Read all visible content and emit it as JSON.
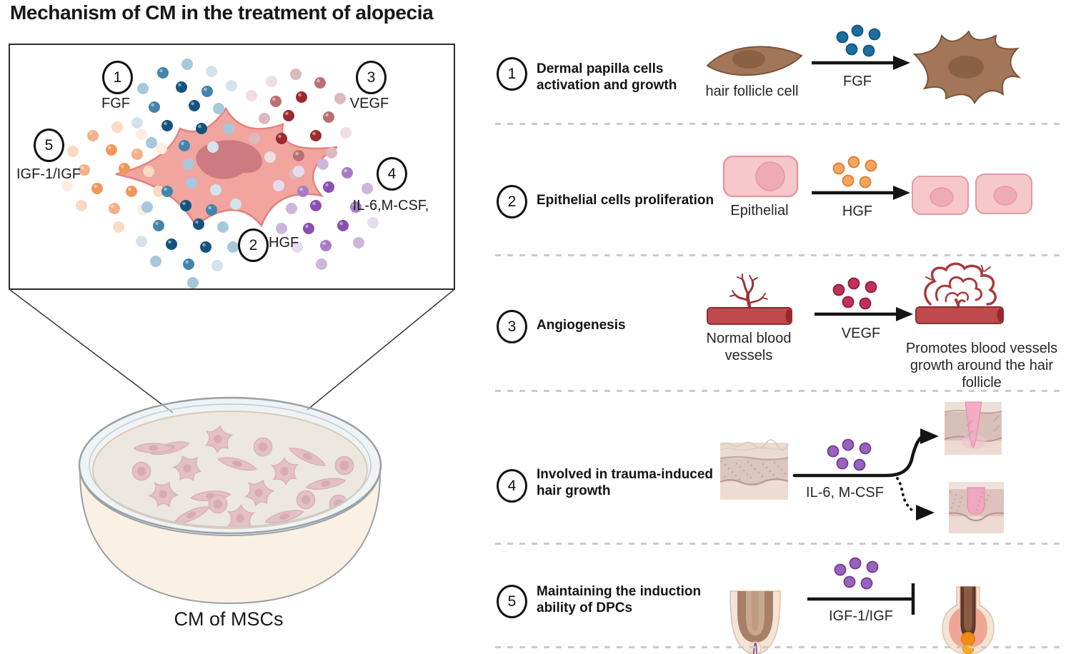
{
  "title": "Mechanism of CM in the treatment of alopecia",
  "magnifier_box": {
    "factors": [
      {
        "num": "1",
        "label": "FGF"
      },
      {
        "num": "2",
        "label": "HGF"
      },
      {
        "num": "3",
        "label": "VEGF"
      },
      {
        "num": "4",
        "label": "IL-6,M-CSF,"
      },
      {
        "num": "5",
        "label": "IGF-1/IGF"
      }
    ]
  },
  "dish": {
    "label": "CM of MSCs"
  },
  "rows": [
    {
      "num": "1",
      "title": "Dermal papilla cells\nactivation and growth",
      "source_label": "hair follicle cell",
      "mediator_label": "FGF",
      "source_icon": "hair-follicle-cell",
      "result_icon": "activated-dermal-papilla-cell"
    },
    {
      "num": "2",
      "title": "Epithelial cells proliferation",
      "source_label": "Epithelial",
      "mediator_label": "HGF",
      "source_icon": "epithelial-cell",
      "result_icon": "two-epithelial-cells"
    },
    {
      "num": "3",
      "title": "Angiogenesis",
      "source_label": "Normal blood\nvessels",
      "mediator_label": "VEGF",
      "result_label": "Promotes blood vessels\ngrowth around the hair\nfollicle",
      "source_icon": "normal-blood-vessel",
      "result_icon": "dense-blood-vessel-network"
    },
    {
      "num": "4",
      "title": "Involved in trauma-induced\nhair growth",
      "mediator_label": "IL-6, M-CSF",
      "source_icon": "skin-section",
      "result_icon": "wounded-skin-sections"
    },
    {
      "num": "5",
      "title": "Maintaining the induction\nability of DPCs",
      "mediator_label": "IGF-1/IGF",
      "source_icon": "hair-follicle",
      "result_icon": "hair-follicle-bulb"
    }
  ],
  "colors": {
    "factor_dot_palettes": {
      "FGF": [
        "#14537f",
        "#4384ab",
        "#a6c8da",
        "#d3e3ec"
      ],
      "HGF": [
        "#14537f",
        "#4384ab",
        "#a6c8da",
        "#d3e3ec"
      ],
      "VEGF": [
        "#9c2a2e",
        "#bc6f72",
        "#dcb9bb",
        "#efdfe0"
      ],
      "IL6": [
        "#8a4fae",
        "#a77cc4",
        "#cdb6dc",
        "#e7dcee"
      ],
      "IGF": [
        "#f0975c",
        "#f4b088",
        "#fbd9c2",
        "#fdeee0"
      ]
    },
    "row_dots": {
      "fgf_blue": "#1b6f9e",
      "fgf_blue_stroke": "#11557e",
      "hgf_orange": "#f5a55f",
      "hgf_orange_stroke": "#dd7e35",
      "vegf_crimson": "#c23158",
      "vegf_crimson_stroke": "#8c1d3f",
      "il6_purple": "#9a62bd",
      "il6_purple_stroke": "#6f3f91"
    },
    "msc_cell": "#f2a49f",
    "msc_nucleus": "#cd7b80",
    "brown_cell": "#a3765a",
    "epithelial_pink": "#f6c8cb",
    "vessel_red": "#bf4a4d",
    "wound_pink": "#f3a9c1",
    "dish_media": "#fbe6d3"
  }
}
